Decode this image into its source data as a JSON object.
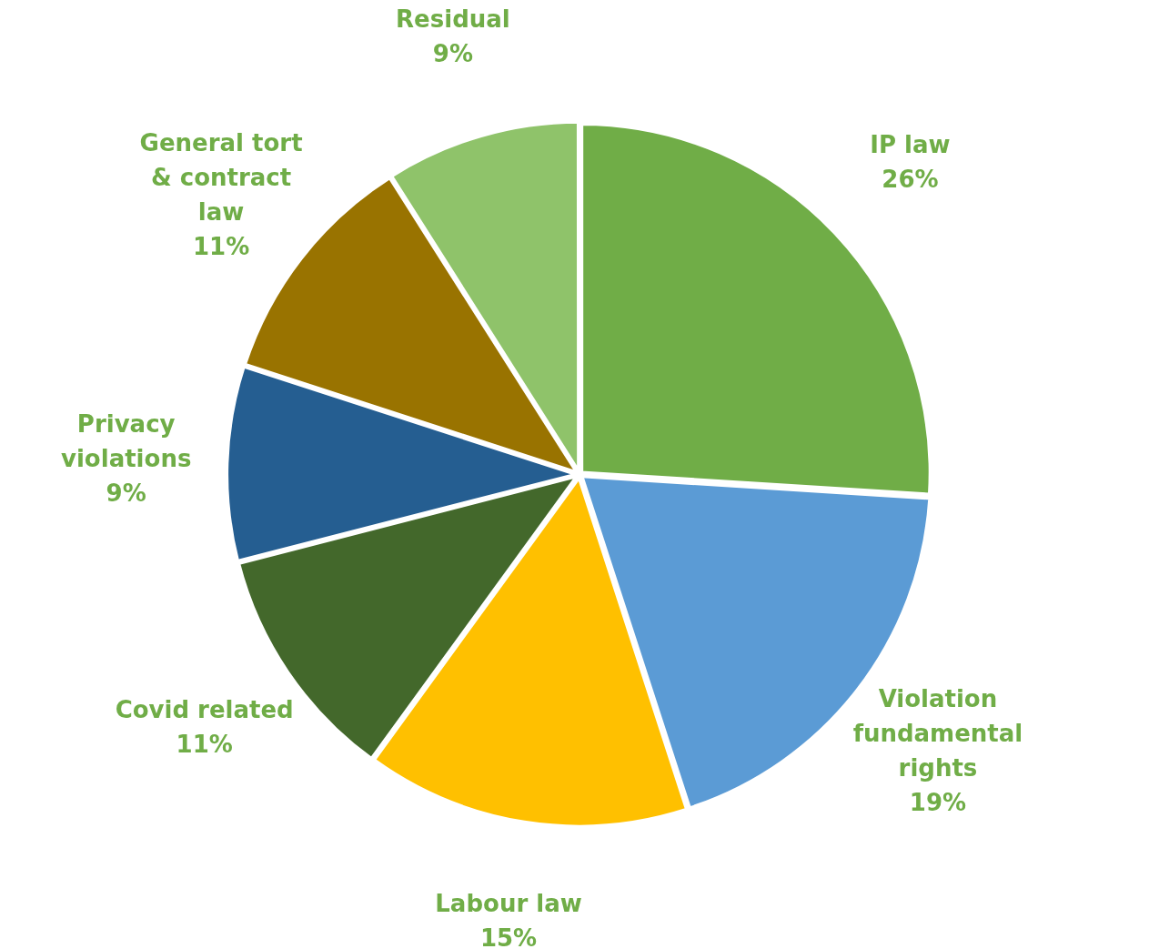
{
  "chart_data": {
    "type": "pie",
    "categories": [
      "IP law",
      "Violation fundamental rights",
      "Labour law",
      "Covid related",
      "Privacy violations",
      "General tort & contract law",
      "Residual"
    ],
    "values": [
      26,
      19,
      15,
      11,
      9,
      11,
      9
    ],
    "value_labels": [
      "26%",
      "19%",
      "15%",
      "11%",
      "9%",
      "11%",
      "9%"
    ],
    "colors": [
      "#70ad47",
      "#5b9bd5",
      "#ffc000",
      "#43682b",
      "#255e91",
      "#997300",
      "#8fc36a"
    ],
    "legend": false
  }
}
